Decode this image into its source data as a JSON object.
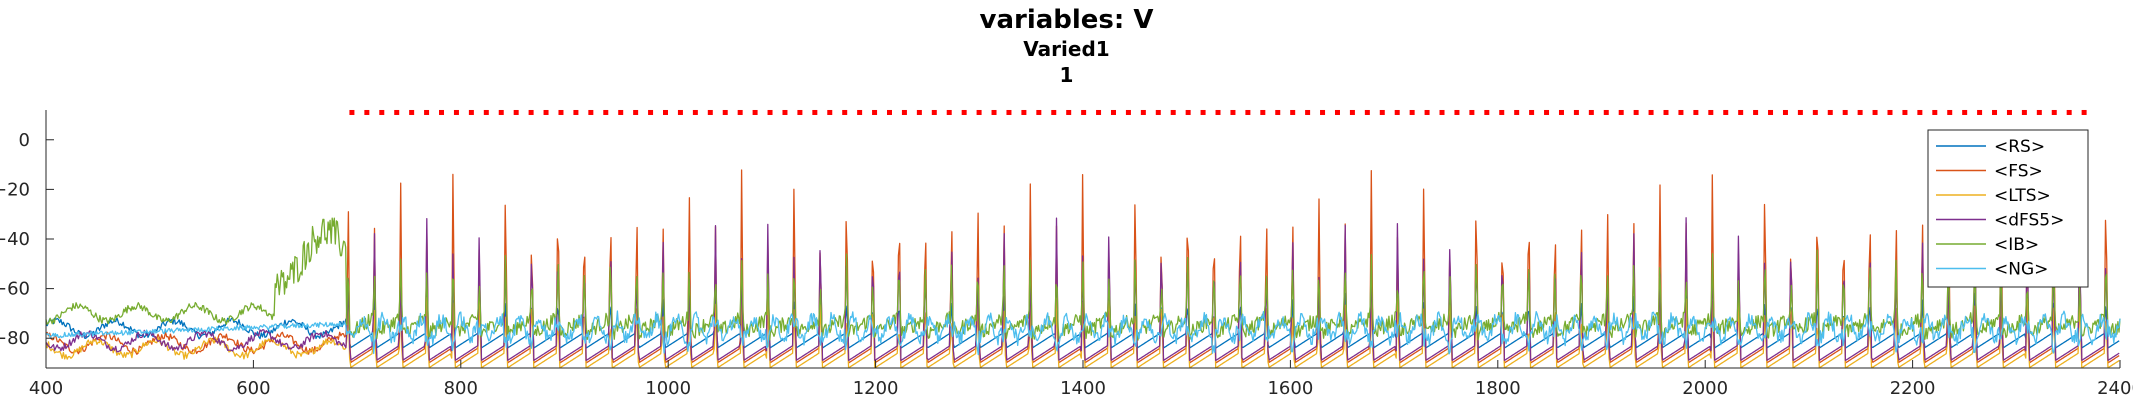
{
  "title": "variables: V",
  "subtitle_1": "Varied1",
  "subtitle_2": "1",
  "chart_data": {
    "type": "line",
    "xlim": [
      400,
      2400
    ],
    "ylim": [
      -92,
      12
    ],
    "x_ticks": [
      400,
      600,
      800,
      1000,
      1200,
      1400,
      1600,
      1800,
      2000,
      2200,
      2400
    ],
    "y_ticks": [
      0,
      -20,
      -40,
      -60,
      -80
    ],
    "legend_position": "top-right",
    "legend": [
      {
        "name": "<RS>",
        "color": "#0072BD"
      },
      {
        "name": "<FS>",
        "color": "#D95319"
      },
      {
        "name": "<LTS>",
        "color": "#EDB120"
      },
      {
        "name": "<dFS5>",
        "color": "#7E2F8E"
      },
      {
        "name": "<IB>",
        "color": "#77AC30"
      },
      {
        "name": "<NG>",
        "color": "#4DBEEE"
      }
    ],
    "series": [
      {
        "name": "<RS>",
        "color": "#0072BD",
        "rest": -80,
        "spike_peak": -60
      },
      {
        "name": "<FS>",
        "color": "#D95319",
        "rest": -86,
        "spike_peak": -10
      },
      {
        "name": "<LTS>",
        "color": "#EDB120",
        "rest": -88,
        "spike_peak": -60
      },
      {
        "name": "<dFS5>",
        "color": "#7E2F8E",
        "rest": -85,
        "spike_peak": -30
      },
      {
        "name": "<IB>",
        "color": "#77AC30",
        "rest": -74,
        "spike_peak": -45
      },
      {
        "name": "<NG>",
        "color": "#4DBEEE",
        "rest": -77,
        "spike_peak": -70
      }
    ],
    "rhythm_start": 690,
    "spike_period": 25.3,
    "raster_marker_color": "#FF0000",
    "raster_y": 11,
    "raster_start": 695,
    "raster_end": 2370,
    "raster_spacing": 14.4
  }
}
